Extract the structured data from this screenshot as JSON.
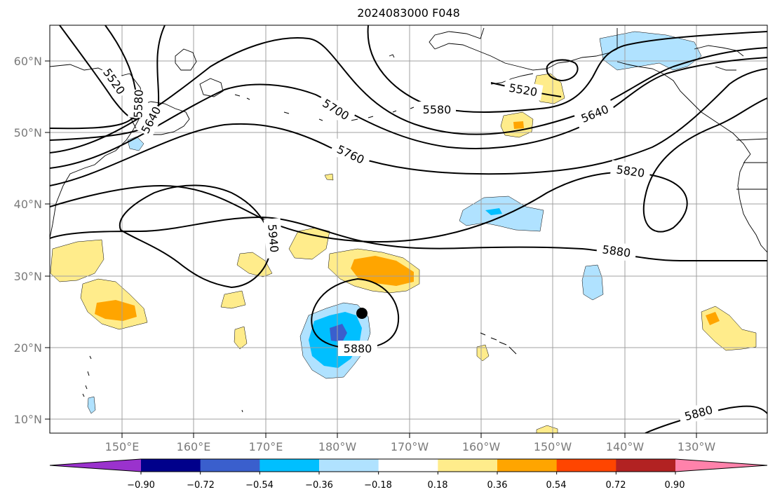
{
  "title": "2024083000 F048",
  "lat_labels": [
    "60°N",
    "50°N",
    "40°N",
    "30°N",
    "20°N",
    "10°N"
  ],
  "lon_labels": [
    "150°E",
    "160°E",
    "170°E",
    "180°W",
    "170°W",
    "160°W",
    "150°W",
    "140°W",
    "130°W"
  ],
  "contour_labels": [
    {
      "text": "5520",
      "rot": 55
    },
    {
      "text": "5580",
      "rot": -88
    },
    {
      "text": "5640",
      "rot": -62
    },
    {
      "text": "5700",
      "rot": 32
    },
    {
      "text": "5580",
      "rot": 0
    },
    {
      "text": "5520",
      "rot": 10
    },
    {
      "text": "5640",
      "rot": -22
    },
    {
      "text": "5760",
      "rot": 25
    },
    {
      "text": "5820",
      "rot": 8
    },
    {
      "text": "5940",
      "rot": 85
    },
    {
      "text": "5880",
      "rot": 8
    },
    {
      "text": "5880",
      "rot": 0
    },
    {
      "text": "5880",
      "rot": -15
    }
  ],
  "colorbar": {
    "colors": [
      "#9a32cd",
      "#00008b",
      "#3a5fcd",
      "#00bfff",
      "#b0e2ff",
      "#ffffff",
      "#ffec8b",
      "#ffa500",
      "#ff4500",
      "#b22222",
      "#ff82ab"
    ],
    "ticks": [
      "−0.90",
      "−0.72",
      "−0.54",
      "−0.36",
      "−0.18",
      "0.18",
      "0.36",
      "0.54",
      "0.72",
      "0.90"
    ]
  },
  "marker": {
    "label": "storm center",
    "color": "#000000"
  }
}
